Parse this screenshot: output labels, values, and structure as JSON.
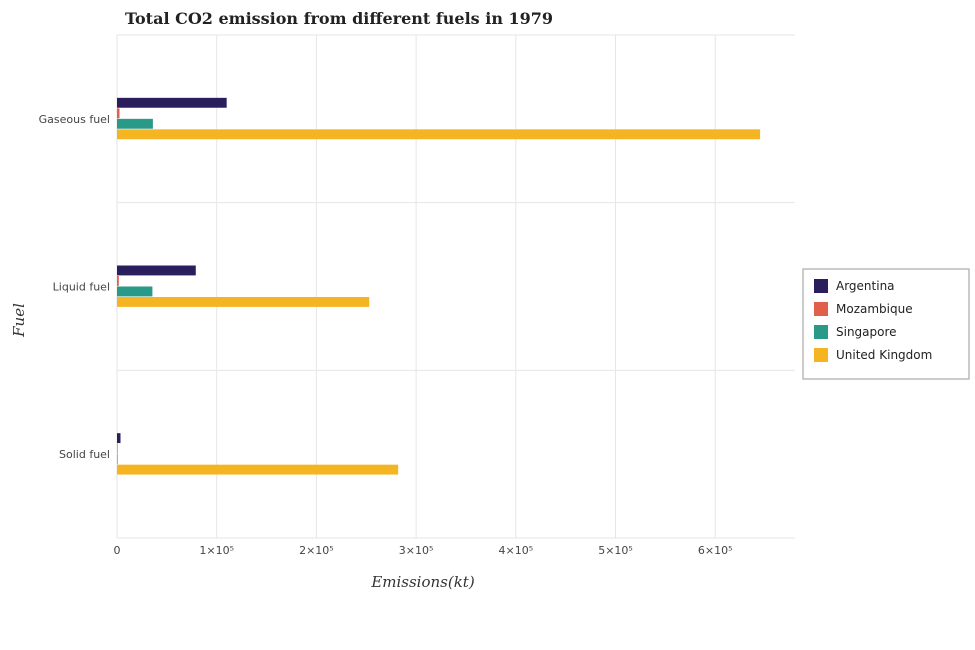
{
  "chart_data": {
    "type": "bar",
    "orientation": "horizontal",
    "title": "Total CO2 emission from different fuels in 1979",
    "xlabel": "Emissions(kt)",
    "ylabel": "Fuel",
    "categories": [
      "Gaseous fuel",
      "Liquid fuel",
      "Solid fuel"
    ],
    "xlim": [
      0,
      680000
    ],
    "xticks": [
      0,
      100000,
      200000,
      300000,
      400000,
      500000,
      600000
    ],
    "xtick_labels": [
      "0",
      "1×10⁵",
      "2×10⁵",
      "3×10⁵",
      "4×10⁵",
      "5×10⁵",
      "6×10⁵"
    ],
    "grid": true,
    "legend_position": "right",
    "series": [
      {
        "name": "Argentina",
        "color": "#2a1f5c",
        "values": [
          110000,
          79000,
          3500
        ]
      },
      {
        "name": "Mozambique",
        "color": "#e0604a",
        "values": [
          2500,
          1800,
          600
        ]
      },
      {
        "name": "Singapore",
        "color": "#2a9a88",
        "values": [
          36000,
          35500,
          100
        ]
      },
      {
        "name": "United Kingdom",
        "color": "#f5b523",
        "values": [
          645000,
          253000,
          282000
        ]
      }
    ]
  }
}
